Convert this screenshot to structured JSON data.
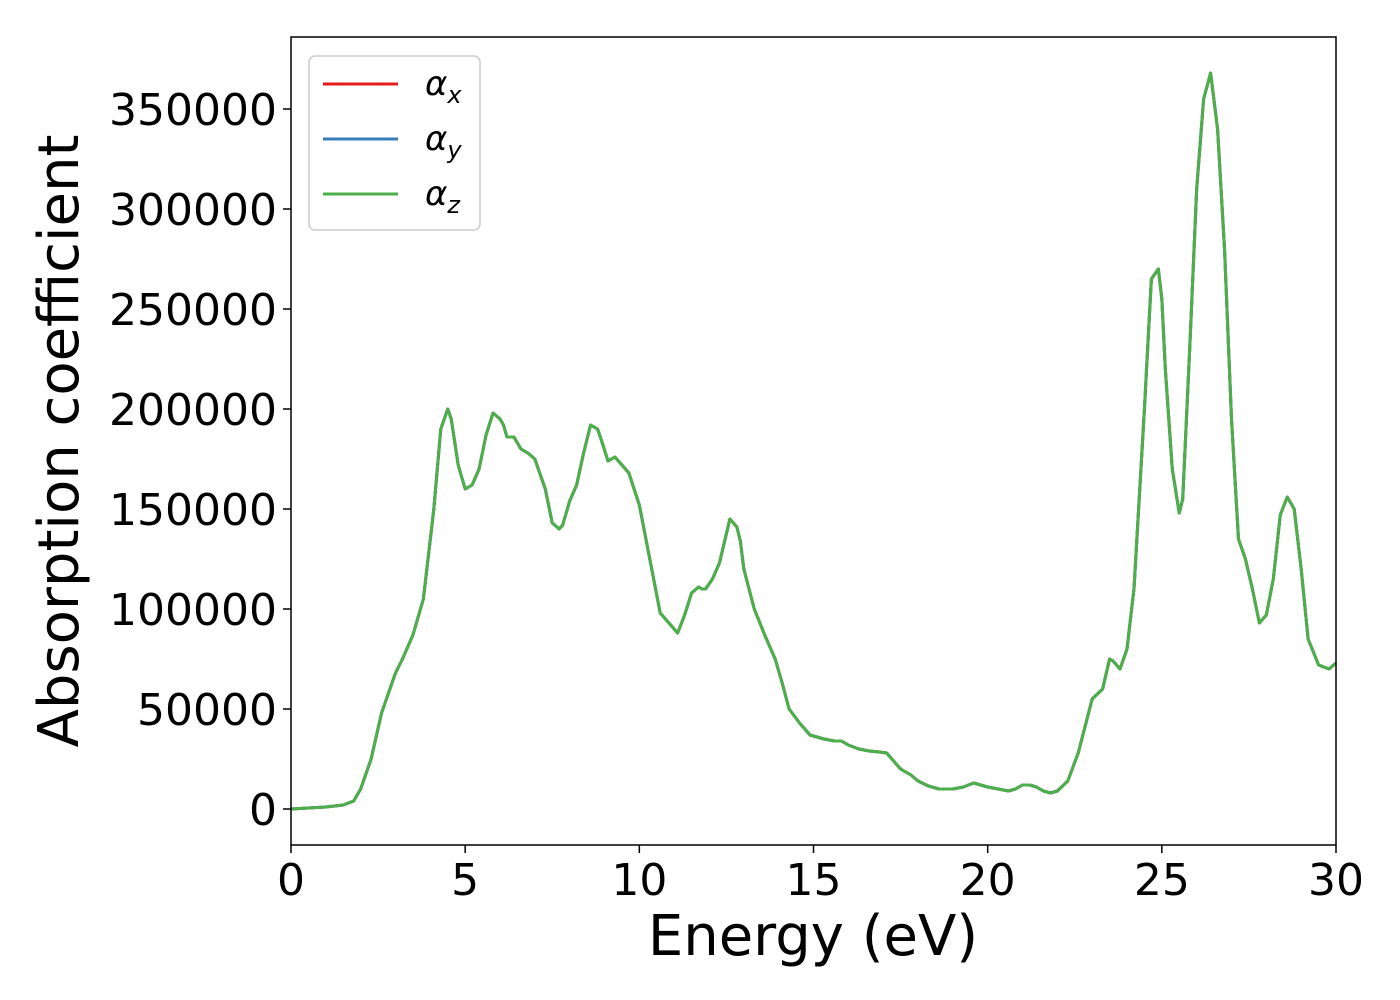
{
  "chart_data": {
    "type": "line",
    "xlabel": "Energy (eV)",
    "ylabel": "Absorption coefficient",
    "xlim": [
      0,
      30
    ],
    "ylim": [
      -18000,
      386000
    ],
    "xticks": [
      "0",
      "5",
      "10",
      "15",
      "20",
      "25",
      "30"
    ],
    "yticks": [
      "0",
      "50000",
      "100000",
      "150000",
      "200000",
      "250000",
      "300000",
      "350000"
    ],
    "grid": false,
    "legend_position": "top-left",
    "series": [
      {
        "name": "α",
        "subscript": "x",
        "color": "#e41a1c"
      },
      {
        "name": "α",
        "subscript": "y",
        "color": "#377eb8"
      },
      {
        "name": "α",
        "subscript": "z",
        "color": "#4daf4a"
      }
    ],
    "x": [
      0,
      0.5,
      1.0,
      1.5,
      1.8,
      2.0,
      2.3,
      2.6,
      2.8,
      3.0,
      3.2,
      3.5,
      3.8,
      4.1,
      4.3,
      4.5,
      4.6,
      4.8,
      5.0,
      5.2,
      5.4,
      5.6,
      5.8,
      6.0,
      6.1,
      6.2,
      6.4,
      6.6,
      6.8,
      7.0,
      7.3,
      7.5,
      7.7,
      7.8,
      7.9,
      8.0,
      8.2,
      8.4,
      8.6,
      8.8,
      8.9,
      9.1,
      9.3,
      9.5,
      9.7,
      10.0,
      10.3,
      10.6,
      10.9,
      11.1,
      11.3,
      11.5,
      11.7,
      11.8,
      11.9,
      12.1,
      12.3,
      12.6,
      12.8,
      12.9,
      13.0,
      13.3,
      13.6,
      13.9,
      14.1,
      14.3,
      14.6,
      14.9,
      15.3,
      15.6,
      15.8,
      16.0,
      16.3,
      16.6,
      16.9,
      17.1,
      17.3,
      17.5,
      17.8,
      18.0,
      18.3,
      18.6,
      19.0,
      19.3,
      19.6,
      19.8,
      20.0,
      20.3,
      20.6,
      20.8,
      21.0,
      21.2,
      21.4,
      21.6,
      21.8,
      22.0,
      22.3,
      22.6,
      23.0,
      23.3,
      23.5,
      23.6,
      23.8,
      24.0,
      24.2,
      24.5,
      24.7,
      24.9,
      25.0,
      25.1,
      25.3,
      25.5,
      25.6,
      25.8,
      26.0,
      26.2,
      26.4,
      26.6,
      26.8,
      27.0,
      27.2,
      27.4,
      27.6,
      27.8,
      28.0,
      28.2,
      28.4,
      28.6,
      28.8,
      29.0,
      29.2,
      29.5,
      29.8,
      30.0
    ],
    "values": [
      0,
      500,
      1000,
      2000,
      4000,
      10000,
      25000,
      48000,
      58000,
      68000,
      75000,
      87000,
      105000,
      150000,
      190000,
      200000,
      195000,
      172000,
      160000,
      162000,
      170000,
      187000,
      198000,
      195000,
      192000,
      186000,
      186000,
      180000,
      178000,
      175000,
      160000,
      143000,
      140000,
      142000,
      148000,
      154000,
      162000,
      178000,
      192000,
      190000,
      185000,
      174000,
      176000,
      172000,
      168000,
      152000,
      125000,
      98000,
      92000,
      88000,
      97000,
      108000,
      111000,
      110000,
      110000,
      115000,
      123000,
      145000,
      141000,
      134000,
      120000,
      100000,
      87000,
      75000,
      63000,
      50000,
      43000,
      37000,
      35000,
      34000,
      34000,
      32000,
      30000,
      29000,
      28500,
      28000,
      24000,
      20000,
      17000,
      14000,
      11500,
      10000,
      10000,
      11000,
      13000,
      12000,
      11000,
      10000,
      9000,
      10000,
      12000,
      12000,
      11000,
      9000,
      8000,
      9000,
      14000,
      28000,
      55000,
      60000,
      75000,
      74000,
      70000,
      80000,
      110000,
      200000,
      265000,
      270000,
      255000,
      220000,
      170000,
      148000,
      155000,
      230000,
      310000,
      355000,
      368000,
      340000,
      280000,
      195000,
      135000,
      125000,
      110000,
      93000,
      97000,
      115000,
      147000,
      156000,
      150000,
      120000,
      85000,
      72000,
      70000,
      73000
    ]
  }
}
